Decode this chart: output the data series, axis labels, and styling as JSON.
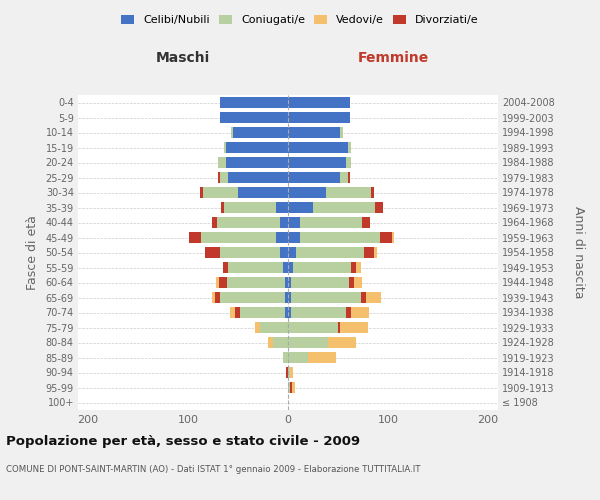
{
  "age_groups": [
    "100+",
    "95-99",
    "90-94",
    "85-89",
    "80-84",
    "75-79",
    "70-74",
    "65-69",
    "60-64",
    "55-59",
    "50-54",
    "45-49",
    "40-44",
    "35-39",
    "30-34",
    "25-29",
    "20-24",
    "15-19",
    "10-14",
    "5-9",
    "0-4"
  ],
  "birth_years": [
    "≤ 1908",
    "1909-1913",
    "1914-1918",
    "1919-1923",
    "1924-1928",
    "1929-1933",
    "1934-1938",
    "1939-1943",
    "1944-1948",
    "1949-1953",
    "1954-1958",
    "1959-1963",
    "1964-1968",
    "1969-1973",
    "1974-1978",
    "1979-1983",
    "1984-1988",
    "1989-1993",
    "1994-1998",
    "1999-2003",
    "2004-2008"
  ],
  "colors": {
    "celibi": "#4472c4",
    "coniugati": "#b8cfa0",
    "vedovi": "#f5c06e",
    "divorziati": "#c0392b"
  },
  "maschi": {
    "celibi": [
      0,
      0,
      0,
      0,
      0,
      0,
      3,
      3,
      3,
      5,
      8,
      12,
      8,
      12,
      50,
      60,
      62,
      62,
      55,
      68,
      68
    ],
    "coniugati": [
      0,
      0,
      0,
      5,
      15,
      28,
      45,
      65,
      58,
      55,
      60,
      75,
      63,
      52,
      35,
      8,
      8,
      2,
      2,
      0,
      0
    ],
    "vedovi": [
      0,
      0,
      0,
      0,
      5,
      5,
      5,
      3,
      3,
      0,
      0,
      0,
      0,
      0,
      0,
      0,
      0,
      0,
      0,
      0,
      0
    ],
    "divorziati": [
      0,
      0,
      2,
      0,
      0,
      0,
      5,
      5,
      8,
      5,
      15,
      12,
      5,
      3,
      3,
      2,
      0,
      0,
      0,
      0,
      0
    ]
  },
  "femmine": {
    "celibi": [
      0,
      0,
      0,
      0,
      0,
      0,
      3,
      3,
      3,
      5,
      8,
      12,
      12,
      25,
      38,
      52,
      58,
      60,
      52,
      62,
      62
    ],
    "coniugati": [
      0,
      2,
      2,
      20,
      40,
      50,
      55,
      70,
      58,
      58,
      68,
      80,
      62,
      62,
      45,
      8,
      5,
      3,
      3,
      0,
      0
    ],
    "vedovi": [
      0,
      3,
      3,
      28,
      28,
      28,
      18,
      15,
      8,
      5,
      3,
      2,
      0,
      0,
      0,
      0,
      0,
      0,
      0,
      0,
      0
    ],
    "divorziati": [
      0,
      2,
      0,
      0,
      0,
      2,
      5,
      5,
      5,
      5,
      10,
      12,
      8,
      8,
      3,
      2,
      0,
      0,
      0,
      0,
      0
    ]
  },
  "xlim": 210,
  "title": "Popolazione per età, sesso e stato civile - 2009",
  "subtitle": "COMUNE DI PONT-SAINT-MARTIN (AO) - Dati ISTAT 1° gennaio 2009 - Elaborazione TUTTITALIA.IT",
  "ylabel_left": "Fasce di età",
  "ylabel_right": "Anni di nascita",
  "header_left": "Maschi",
  "header_right": "Femmine",
  "legend_labels": [
    "Celibi/Nubili",
    "Coniugati/e",
    "Vedovi/e",
    "Divorziati/e"
  ],
  "background_color": "#f0f0f0",
  "plot_background": "#ffffff",
  "xtick_positions": [
    -200,
    -100,
    0,
    100,
    200
  ]
}
